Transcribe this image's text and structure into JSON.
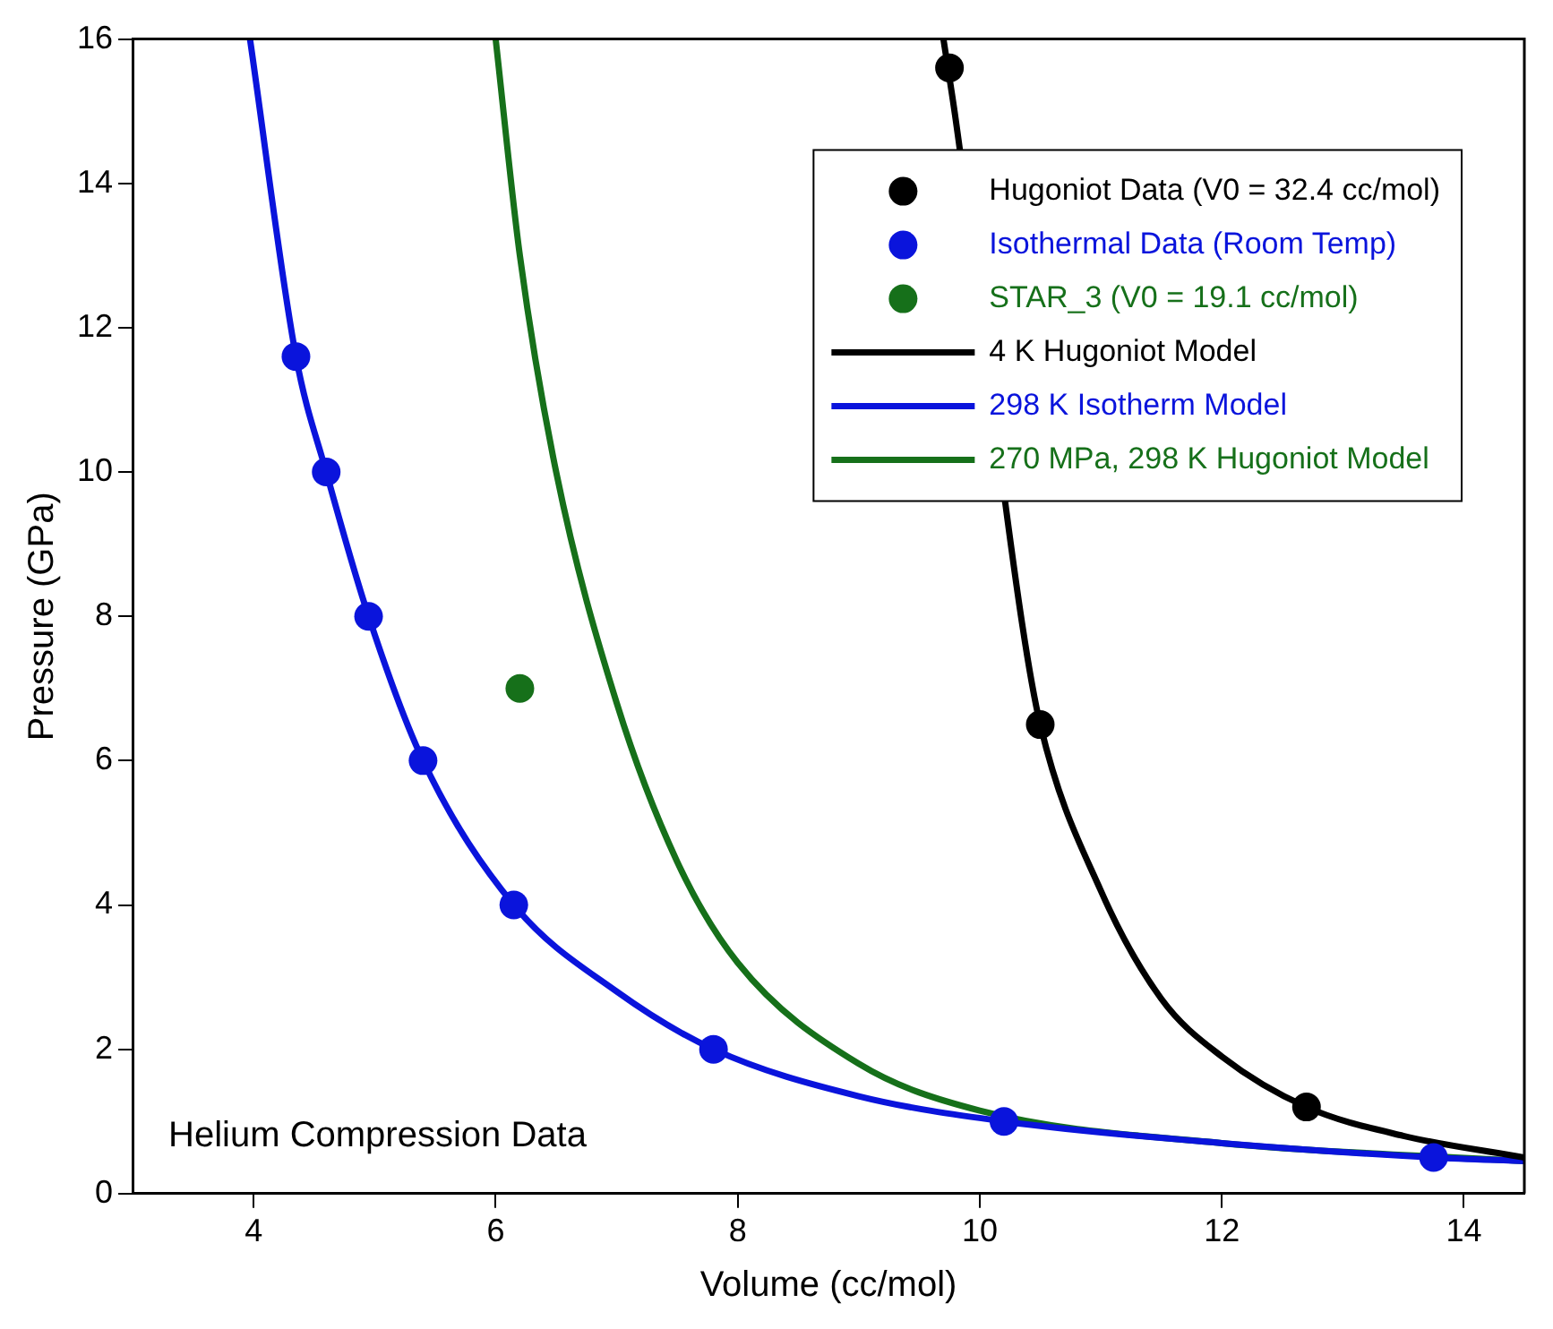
{
  "chart_data": {
    "type": "scatter",
    "xlabel": "Volume (cc/mol)",
    "ylabel": "Pressure (GPa)",
    "xlim": [
      3,
      14.5
    ],
    "ylim": [
      0,
      16
    ],
    "xticks": [
      4,
      6,
      8,
      10,
      12,
      14
    ],
    "yticks": [
      0,
      2,
      4,
      6,
      8,
      10,
      12,
      14,
      16
    ],
    "grid": false,
    "legend": "top right",
    "annotations": [
      "Helium Compression Data"
    ],
    "series": [
      {
        "name": "Hugoniot Data (V0 = 32.4 cc/mol)",
        "type": "scatter",
        "marker": "circle",
        "color": "#000000",
        "x": [
          9.75,
          10.5,
          12.7
        ],
        "values": [
          15.6,
          6.5,
          1.2
        ]
      },
      {
        "name": "Isothermal Data (Room Temp)",
        "type": "scatter",
        "marker": "circle",
        "color": "#0a14dc",
        "x": [
          4.35,
          4.6,
          4.95,
          5.4,
          6.15,
          7.8,
          10.2,
          13.75
        ],
        "values": [
          11.6,
          10,
          8,
          6,
          4,
          2,
          1,
          0.5
        ]
      },
      {
        "name": "STAR_3 (V0 = 19.1 cc/mol)",
        "type": "scatter",
        "marker": "circle",
        "color": "#16701a",
        "x": [
          6.2
        ],
        "values": [
          7.0
        ]
      },
      {
        "name": "4 K Hugoniot Model",
        "type": "line",
        "marker": "none",
        "color": "#000000",
        "x": [
          9.7,
          9.8,
          10.35,
          10.5,
          11,
          11.5,
          12,
          12.7,
          13.5,
          14.5
        ],
        "values": [
          16,
          14.9,
          7.9,
          6.5,
          4.2,
          2.7,
          1.9,
          1.2,
          0.8,
          0.5
        ]
      },
      {
        "name": "298 K Isotherm Model",
        "type": "line",
        "marker": "none",
        "color": "#0a14dc",
        "x": [
          3.97,
          4.35,
          4.6,
          4.95,
          5.4,
          6.15,
          7,
          7.8,
          9,
          10.2,
          12,
          13.75,
          14.5
        ],
        "values": [
          16,
          11.6,
          10,
          8,
          6,
          4,
          2.8,
          2,
          1.35,
          1,
          0.7,
          0.5,
          0.45
        ]
      },
      {
        "name": "270 MPa, 298 K Hugoniot Model",
        "type": "line",
        "marker": "none",
        "color": "#16701a",
        "x": [
          6.0,
          6.2,
          6.5,
          7,
          7.5,
          8,
          9,
          10,
          12,
          14.5
        ],
        "values": [
          16,
          13,
          10,
          6.8,
          4.6,
          3.2,
          1.8,
          1.15,
          0.7,
          0.45
        ]
      }
    ]
  }
}
